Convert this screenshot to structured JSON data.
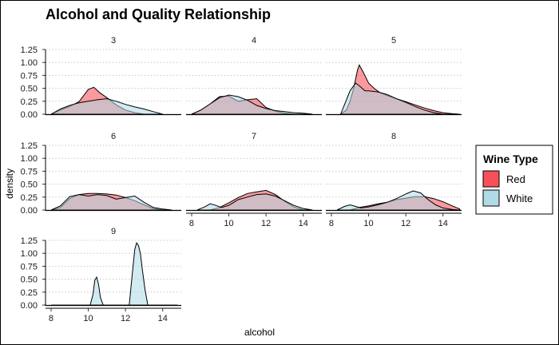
{
  "chart_data": {
    "type": "area",
    "title": "Alcohol and Quality Relationship",
    "xlabel": "alcohol",
    "ylabel": "density",
    "xlim": [
      7.7,
      15.0
    ],
    "ylim": [
      0,
      1.3
    ],
    "yticks": [
      0,
      0.25,
      0.5,
      0.75,
      1.0,
      1.25
    ],
    "ytick_labels": [
      "0.00",
      "0.25",
      "0.50",
      "0.75",
      "1.00",
      "1.25"
    ],
    "xticks": [
      8,
      10,
      12,
      14
    ],
    "xtick_labels": [
      "8",
      "10",
      "12",
      "14"
    ],
    "grid": "horizontal dotted",
    "legend_position": "right",
    "legend": {
      "title": "Wine Type",
      "entries": [
        {
          "label": "Red",
          "color": "#F8474F"
        },
        {
          "label": "White",
          "color": "#ADD8E6"
        }
      ]
    },
    "series_colors": {
      "Red": "#F8474F",
      "White": "#ADD8E6"
    },
    "panels": [
      {
        "label": "3",
        "red": {
          "x": [
            8.0,
            8.5,
            9.0,
            9.5,
            10.0,
            10.3,
            10.6,
            11.0,
            11.5,
            12.0,
            12.5,
            13.0
          ],
          "y": [
            0.0,
            0.08,
            0.15,
            0.24,
            0.48,
            0.52,
            0.42,
            0.32,
            0.18,
            0.08,
            0.03,
            0.0
          ]
        },
        "white": {
          "x": [
            8.0,
            8.5,
            9.0,
            9.5,
            10.0,
            10.5,
            11.0,
            11.5,
            12.0,
            12.5,
            13.0,
            13.5,
            14.0
          ],
          "y": [
            0.0,
            0.1,
            0.17,
            0.22,
            0.25,
            0.28,
            0.3,
            0.25,
            0.19,
            0.14,
            0.1,
            0.05,
            0.0
          ]
        }
      },
      {
        "label": "4",
        "red": {
          "x": [
            8.0,
            8.5,
            9.0,
            9.5,
            10.0,
            10.5,
            11.0,
            11.5,
            12.0,
            12.5,
            13.0,
            13.5
          ],
          "y": [
            0.0,
            0.08,
            0.2,
            0.34,
            0.35,
            0.25,
            0.28,
            0.3,
            0.13,
            0.06,
            0.02,
            0.0
          ]
        },
        "white": {
          "x": [
            8.0,
            8.5,
            9.0,
            9.5,
            10.0,
            10.5,
            11.0,
            11.5,
            12.0,
            12.5,
            13.0,
            13.5,
            14.0,
            14.5
          ],
          "y": [
            0.0,
            0.08,
            0.2,
            0.32,
            0.37,
            0.34,
            0.27,
            0.17,
            0.11,
            0.07,
            0.05,
            0.03,
            0.02,
            0.0
          ]
        }
      },
      {
        "label": "5",
        "red": {
          "x": [
            8.5,
            8.8,
            9.0,
            9.2,
            9.4,
            9.5,
            9.7,
            10.0,
            10.3,
            10.6,
            11.0,
            11.5,
            12.0,
            12.5,
            13.0,
            13.5,
            14.0,
            14.5,
            14.9
          ],
          "y": [
            0.0,
            0.08,
            0.25,
            0.5,
            0.85,
            0.95,
            0.82,
            0.6,
            0.5,
            0.42,
            0.36,
            0.3,
            0.24,
            0.18,
            0.12,
            0.07,
            0.03,
            0.01,
            0.0
          ]
        },
        "white": {
          "x": [
            8.5,
            9.0,
            9.3,
            9.5,
            9.8,
            10.0,
            10.5,
            11.0,
            11.5,
            12.0,
            12.5,
            13.0,
            13.5,
            14.0
          ],
          "y": [
            0.0,
            0.45,
            0.6,
            0.55,
            0.45,
            0.45,
            0.43,
            0.38,
            0.3,
            0.23,
            0.15,
            0.08,
            0.03,
            0.0
          ]
        }
      },
      {
        "label": "6",
        "red": {
          "x": [
            8.0,
            8.5,
            9.0,
            9.5,
            10.0,
            10.5,
            11.0,
            11.5,
            12.0,
            12.5,
            13.0,
            13.5,
            14.0
          ],
          "y": [
            0.0,
            0.05,
            0.22,
            0.3,
            0.32,
            0.32,
            0.31,
            0.29,
            0.24,
            0.18,
            0.1,
            0.03,
            0.0
          ]
        },
        "white": {
          "x": [
            8.0,
            8.5,
            9.0,
            9.5,
            10.0,
            10.5,
            11.0,
            11.5,
            12.0,
            12.5,
            13.0,
            13.5,
            14.0,
            14.5
          ],
          "y": [
            0.0,
            0.08,
            0.26,
            0.3,
            0.27,
            0.3,
            0.28,
            0.21,
            0.24,
            0.27,
            0.15,
            0.05,
            0.02,
            0.0
          ]
        }
      },
      {
        "label": "7",
        "red": {
          "x": [
            9.0,
            9.5,
            10.0,
            10.5,
            11.0,
            11.5,
            12.0,
            12.5,
            13.0,
            13.5,
            14.0
          ],
          "y": [
            0.0,
            0.05,
            0.14,
            0.24,
            0.32,
            0.35,
            0.38,
            0.3,
            0.17,
            0.06,
            0.0
          ]
        },
        "white": {
          "x": [
            8.3,
            8.7,
            9.0,
            9.3,
            9.6,
            10.0,
            10.5,
            11.0,
            11.5,
            12.0,
            12.5,
            13.0,
            13.5,
            14.0,
            14.5
          ],
          "y": [
            0.0,
            0.06,
            0.12,
            0.09,
            0.05,
            0.09,
            0.2,
            0.25,
            0.3,
            0.31,
            0.27,
            0.18,
            0.09,
            0.03,
            0.0
          ]
        }
      },
      {
        "label": "8",
        "red": {
          "x": [
            9.0,
            9.5,
            10.0,
            10.5,
            11.0,
            11.5,
            12.0,
            12.5,
            13.0,
            13.5,
            14.0,
            14.5,
            14.9
          ],
          "y": [
            0.0,
            0.05,
            0.08,
            0.12,
            0.15,
            0.2,
            0.23,
            0.26,
            0.26,
            0.22,
            0.16,
            0.08,
            0.02
          ]
        },
        "white": {
          "x": [
            8.3,
            8.7,
            9.0,
            9.3,
            9.6,
            10.0,
            10.5,
            11.0,
            11.5,
            12.0,
            12.4,
            12.8,
            13.2,
            13.6,
            14.0,
            14.5,
            14.9
          ],
          "y": [
            0.0,
            0.07,
            0.1,
            0.07,
            0.04,
            0.06,
            0.1,
            0.15,
            0.22,
            0.31,
            0.37,
            0.33,
            0.2,
            0.1,
            0.04,
            0.01,
            0.0
          ]
        }
      },
      {
        "label": "9",
        "red": null,
        "white": {
          "x": [
            8.0,
            10.1,
            10.25,
            10.35,
            10.45,
            10.55,
            10.65,
            10.8,
            12.2,
            12.35,
            12.5,
            12.6,
            12.7,
            12.8,
            12.9,
            13.05,
            13.2,
            14.8
          ],
          "y": [
            0.0,
            0.0,
            0.2,
            0.48,
            0.54,
            0.4,
            0.15,
            0.0,
            0.0,
            0.55,
            1.08,
            1.2,
            1.15,
            1.0,
            0.7,
            0.3,
            0.0,
            0.0
          ]
        }
      }
    ]
  }
}
